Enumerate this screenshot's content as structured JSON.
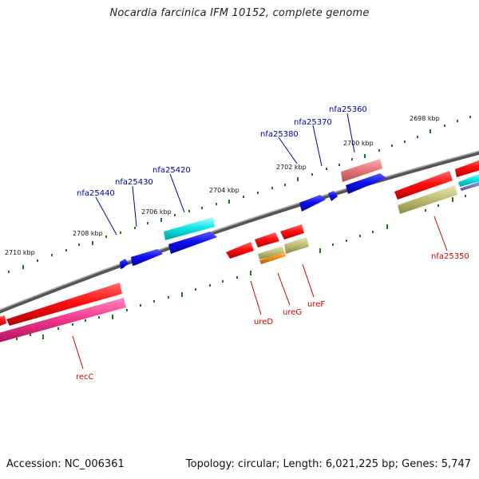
{
  "title": "Nocardia farcinica IFM 10152, complete genome",
  "footer": {
    "accession": "Accession: NC_006361",
    "summary": "Topology: circular; Length: 6,021,225 bp; Genes: 5,747"
  },
  "scale_labels": [
    "2710 kbp",
    "2708 kbp",
    "2706 kbp",
    "2704 kbp",
    "2702 kbp",
    "2700 kbp",
    "2698 kbp"
  ],
  "gene_labels": [
    {
      "text": "nfa25440",
      "color": "#0000aa"
    },
    {
      "text": "nfa25430",
      "color": "#0000aa"
    },
    {
      "text": "nfa25420",
      "color": "#0000aa"
    },
    {
      "text": "nfa25380",
      "color": "#0000aa"
    },
    {
      "text": "nfa25370",
      "color": "#0000aa"
    },
    {
      "text": "nfa25360",
      "color": "#0000aa"
    },
    {
      "text": "nfa25350",
      "color": "#cc0000"
    },
    {
      "text": "ureD",
      "color": "#cc0000"
    },
    {
      "text": "ureG",
      "color": "#cc0000"
    },
    {
      "text": "ureF",
      "color": "#cc0000"
    },
    {
      "text": "recC",
      "color": "#cc0000"
    }
  ],
  "colors": {
    "backbone": "#808080",
    "tick": "#1a7a1a",
    "forward_gene": "#1010e0",
    "reverse_gene": "#e01010",
    "cyan_gene": "#10e0e0",
    "pink_gene": "#e85a9a",
    "salmon_gene": "#e88080",
    "olive_gene": "#b8b870",
    "orange_gene": "#e88a10"
  }
}
